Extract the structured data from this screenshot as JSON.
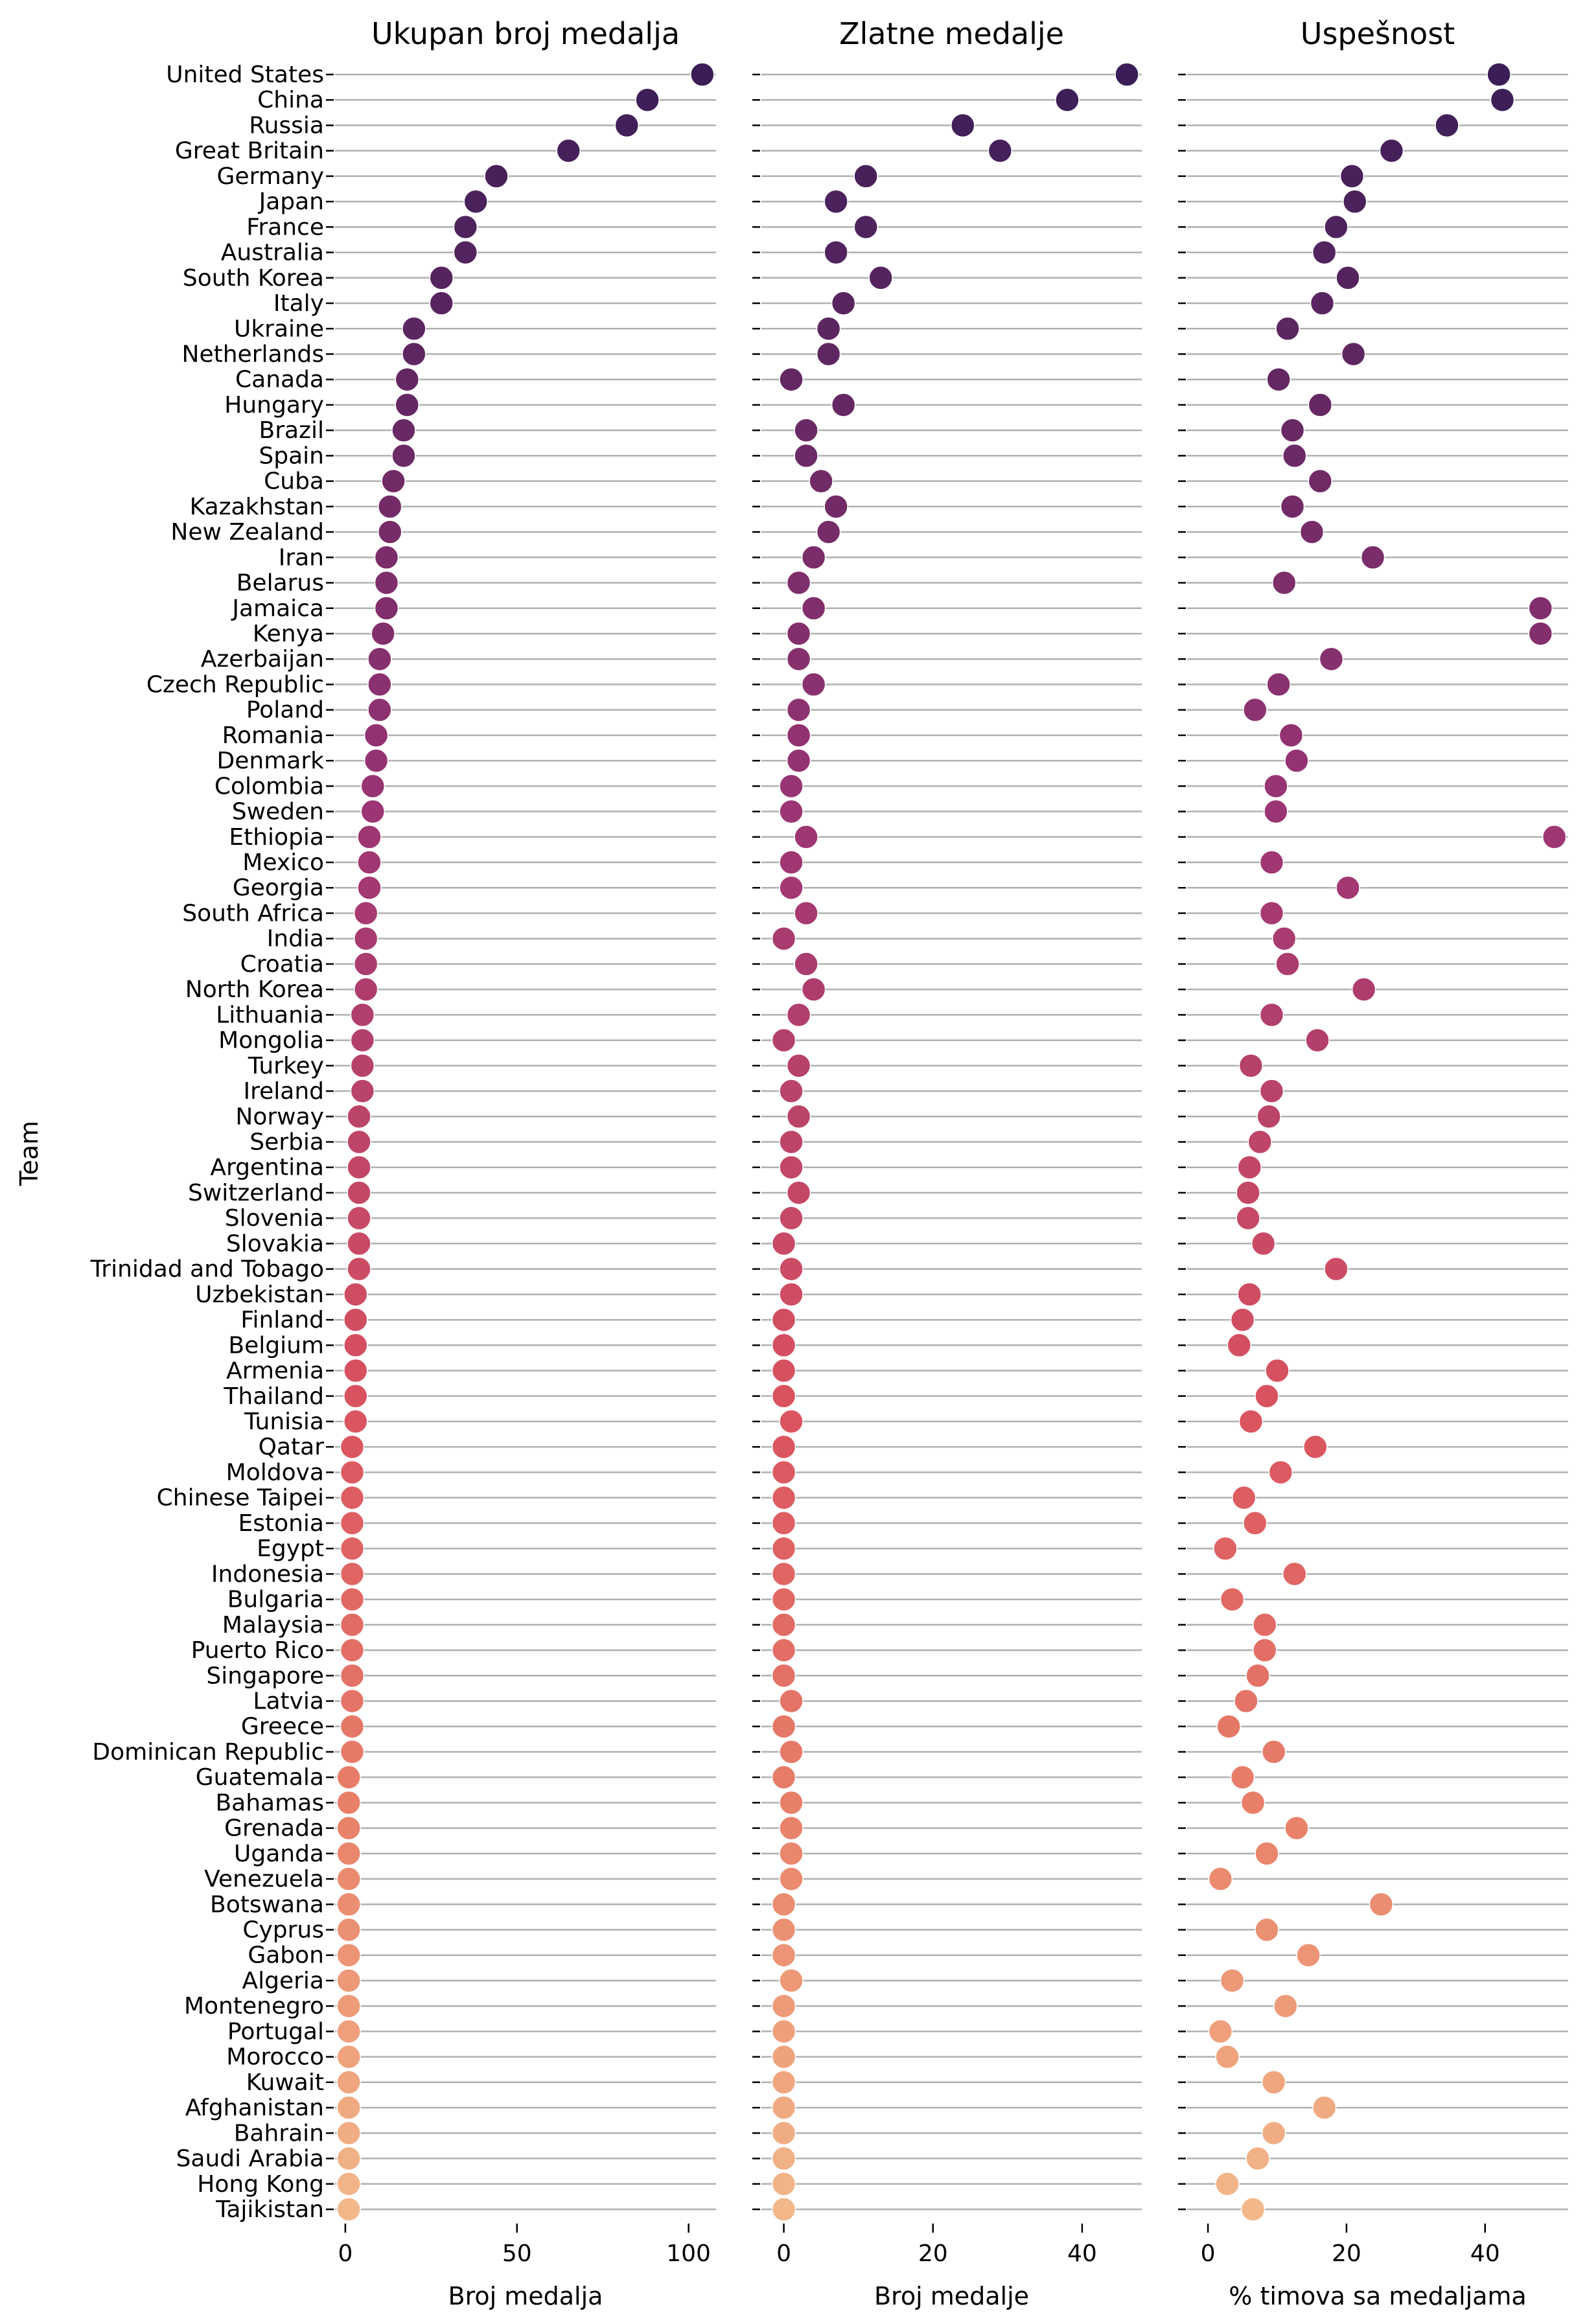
{
  "chart_data": {
    "type": "scatter",
    "ylabel": "Team",
    "grid": "horizontal",
    "palette_start": "#3b1e57",
    "palette_end": "#f2b88a",
    "teams": [
      "United States",
      "China",
      "Russia",
      "Great Britain",
      "Germany",
      "Japan",
      "France",
      "Australia",
      "South Korea",
      "Italy",
      "Ukraine",
      "Netherlands",
      "Canada",
      "Hungary",
      "Brazil",
      "Spain",
      "Cuba",
      "Kazakhstan",
      "New Zealand",
      "Iran",
      "Belarus",
      "Jamaica",
      "Kenya",
      "Azerbaijan",
      "Czech Republic",
      "Poland",
      "Romania",
      "Denmark",
      "Colombia",
      "Sweden",
      "Ethiopia",
      "Mexico",
      "Georgia",
      "South Africa",
      "India",
      "Croatia",
      "North Korea",
      "Lithuania",
      "Mongolia",
      "Turkey",
      "Ireland",
      "Norway",
      "Serbia",
      "Argentina",
      "Switzerland",
      "Slovenia",
      "Slovakia",
      "Trinidad and Tobago",
      "Uzbekistan",
      "Finland",
      "Belgium",
      "Armenia",
      "Thailand",
      "Tunisia",
      "Qatar",
      "Moldova",
      "Chinese Taipei",
      "Estonia",
      "Egypt",
      "Indonesia",
      "Bulgaria",
      "Malaysia",
      "Puerto Rico",
      "Singapore",
      "Latvia",
      "Greece",
      "Dominican Republic",
      "Guatemala",
      "Bahamas",
      "Grenada",
      "Uganda",
      "Venezuela",
      "Botswana",
      "Cyprus",
      "Gabon",
      "Algeria",
      "Montenegro",
      "Portugal",
      "Morocco",
      "Kuwait",
      "Afghanistan",
      "Bahrain",
      "Saudi Arabia",
      "Hong Kong",
      "Tajikistan"
    ],
    "panels": [
      {
        "title": "Ukupan broj medalja",
        "xlabel": "Broj medalja",
        "xlim": [
          -3,
          108
        ],
        "xticks": [
          0,
          50,
          100
        ],
        "values": [
          104,
          88,
          82,
          65,
          44,
          38,
          35,
          35,
          28,
          28,
          20,
          20,
          18,
          18,
          17,
          17,
          14,
          13,
          13,
          12,
          12,
          12,
          11,
          10,
          10,
          10,
          9,
          9,
          8,
          8,
          7,
          7,
          7,
          6,
          6,
          6,
          6,
          5,
          5,
          5,
          5,
          4,
          4,
          4,
          4,
          4,
          4,
          4,
          3,
          3,
          3,
          3,
          3,
          3,
          2,
          2,
          2,
          2,
          2,
          2,
          2,
          2,
          2,
          2,
          2,
          2,
          2,
          1,
          1,
          1,
          1,
          1,
          1,
          1,
          1,
          1,
          1,
          1,
          1,
          1,
          1,
          1,
          1,
          1,
          1
        ]
      },
      {
        "title": "Zlatne medalje",
        "xlabel": "Broj medalje",
        "xlim": [
          -3,
          48
        ],
        "xticks": [
          0,
          20,
          40
        ],
        "values": [
          46,
          38,
          24,
          29,
          11,
          7,
          11,
          7,
          13,
          8,
          6,
          6,
          1,
          8,
          3,
          3,
          5,
          7,
          6,
          4,
          2,
          4,
          2,
          2,
          4,
          2,
          2,
          2,
          1,
          1,
          3,
          1,
          1,
          3,
          0,
          3,
          4,
          2,
          0,
          2,
          1,
          2,
          1,
          1,
          2,
          1,
          0,
          1,
          1,
          0,
          0,
          0,
          0,
          1,
          0,
          0,
          0,
          0,
          0,
          0,
          0,
          0,
          0,
          0,
          1,
          0,
          1,
          0,
          1,
          1,
          1,
          1,
          0,
          0,
          0,
          1,
          0,
          0,
          0,
          0,
          0,
          0,
          0,
          0,
          0
        ]
      },
      {
        "title": "Uspešnost",
        "xlabel": "% timova sa medaljama",
        "xlim": [
          -3,
          52
        ],
        "xticks": [
          0,
          20,
          40
        ],
        "values": [
          42.0,
          42.5,
          34.5,
          26.5,
          20.8,
          21.2,
          18.5,
          16.8,
          20.2,
          16.5,
          11.5,
          21.0,
          10.2,
          16.2,
          12.2,
          12.5,
          16.2,
          12.2,
          15.0,
          23.8,
          11.0,
          48.0,
          48.0,
          17.8,
          10.2,
          6.8,
          12.0,
          12.8,
          9.8,
          9.8,
          50.0,
          9.2,
          20.2,
          9.2,
          11.0,
          11.5,
          22.5,
          9.2,
          15.8,
          6.2,
          9.2,
          8.8,
          7.5,
          6.0,
          5.8,
          5.8,
          8.0,
          18.5,
          6.0,
          5.0,
          4.5,
          10.0,
          8.5,
          6.2,
          15.5,
          10.5,
          5.2,
          6.8,
          2.5,
          12.5,
          3.5,
          8.2,
          8.2,
          7.2,
          5.5,
          3.0,
          9.5,
          5.0,
          6.5,
          12.8,
          8.5,
          1.8,
          25.0,
          8.5,
          14.5,
          3.5,
          11.2,
          1.8,
          2.8,
          9.5,
          16.8,
          9.5,
          7.2,
          2.8,
          6.5
        ]
      }
    ]
  }
}
